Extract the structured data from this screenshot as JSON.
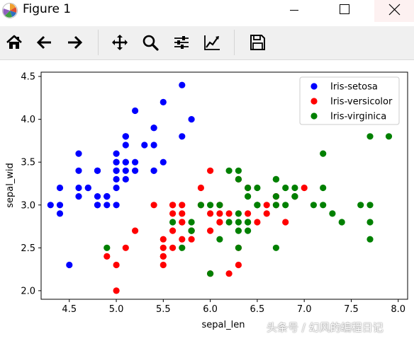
{
  "window": {
    "title": "Figure 1",
    "icon": "matplotlib-logo-icon"
  },
  "toolbar": {
    "buttons": [
      {
        "name": "home",
        "icon": "home-icon"
      },
      {
        "name": "back",
        "icon": "arrow-left-icon"
      },
      {
        "name": "forward",
        "icon": "arrow-right-icon"
      },
      {
        "name": "pan",
        "icon": "move-icon"
      },
      {
        "name": "zoom",
        "icon": "magnifier-icon"
      },
      {
        "name": "subplots",
        "icon": "sliders-icon"
      },
      {
        "name": "customize",
        "icon": "line-chart-icon"
      },
      {
        "name": "save",
        "icon": "floppy-disk-icon"
      }
    ]
  },
  "watermark": "头条号 / 幻风的编程日记",
  "chart_data": {
    "type": "scatter",
    "xlabel": "sepal_len",
    "ylabel": "sepal_wid",
    "xlim": [
      4.2,
      8.1
    ],
    "ylim": [
      1.9,
      4.55
    ],
    "xticks": [
      4.5,
      5.0,
      5.5,
      6.0,
      6.5,
      7.0,
      7.5,
      8.0
    ],
    "xtick_labels": [
      "4.5",
      "5.0",
      "5.5",
      "6.0",
      "6.5",
      "7.0",
      "7.5",
      "8.0"
    ],
    "yticks": [
      2.0,
      2.5,
      3.0,
      3.5,
      4.0,
      4.5
    ],
    "ytick_labels": [
      "2.0",
      "2.5",
      "3.0",
      "3.5",
      "4.0",
      "4.5"
    ],
    "grid": false,
    "legend_position": "top-right",
    "series": [
      {
        "name": "Iris-setosa",
        "color": "#0000ff",
        "points": [
          [
            5.1,
            3.5
          ],
          [
            4.9,
            3.0
          ],
          [
            4.7,
            3.2
          ],
          [
            4.6,
            3.1
          ],
          [
            5.0,
            3.6
          ],
          [
            5.4,
            3.9
          ],
          [
            4.6,
            3.4
          ],
          [
            5.0,
            3.4
          ],
          [
            4.4,
            2.9
          ],
          [
            4.9,
            3.1
          ],
          [
            5.4,
            3.7
          ],
          [
            4.8,
            3.4
          ],
          [
            4.8,
            3.0
          ],
          [
            4.3,
            3.0
          ],
          [
            5.8,
            4.0
          ],
          [
            5.7,
            4.4
          ],
          [
            5.4,
            3.9
          ],
          [
            5.1,
            3.5
          ],
          [
            5.7,
            3.8
          ],
          [
            5.1,
            3.8
          ],
          [
            5.4,
            3.4
          ],
          [
            5.1,
            3.7
          ],
          [
            4.6,
            3.6
          ],
          [
            5.1,
            3.3
          ],
          [
            4.8,
            3.4
          ],
          [
            5.0,
            3.0
          ],
          [
            5.0,
            3.4
          ],
          [
            5.2,
            3.5
          ],
          [
            5.2,
            3.4
          ],
          [
            4.7,
            3.2
          ],
          [
            4.8,
            3.1
          ],
          [
            5.4,
            3.4
          ],
          [
            5.2,
            4.1
          ],
          [
            5.5,
            4.2
          ],
          [
            4.9,
            3.1
          ],
          [
            5.0,
            3.2
          ],
          [
            5.5,
            3.5
          ],
          [
            4.9,
            3.1
          ],
          [
            4.4,
            3.0
          ],
          [
            5.1,
            3.4
          ],
          [
            5.0,
            3.5
          ],
          [
            4.5,
            2.3
          ],
          [
            4.4,
            3.2
          ],
          [
            5.0,
            3.5
          ],
          [
            5.1,
            3.8
          ],
          [
            4.8,
            3.0
          ],
          [
            5.1,
            3.8
          ],
          [
            4.6,
            3.2
          ],
          [
            5.3,
            3.7
          ],
          [
            5.0,
            3.3
          ]
        ]
      },
      {
        "name": "Iris-versicolor",
        "color": "#ff0000",
        "points": [
          [
            7.0,
            3.2
          ],
          [
            6.4,
            3.2
          ],
          [
            6.9,
            3.1
          ],
          [
            5.5,
            2.3
          ],
          [
            6.5,
            2.8
          ],
          [
            5.7,
            2.8
          ],
          [
            6.3,
            3.3
          ],
          [
            4.9,
            2.4
          ],
          [
            6.6,
            2.9
          ],
          [
            5.2,
            2.7
          ],
          [
            5.0,
            2.0
          ],
          [
            5.9,
            3.0
          ],
          [
            6.0,
            2.2
          ],
          [
            6.1,
            2.9
          ],
          [
            5.6,
            2.9
          ],
          [
            6.7,
            3.1
          ],
          [
            5.6,
            3.0
          ],
          [
            5.8,
            2.7
          ],
          [
            6.2,
            2.2
          ],
          [
            5.6,
            2.5
          ],
          [
            5.9,
            3.2
          ],
          [
            6.1,
            2.8
          ],
          [
            6.3,
            2.5
          ],
          [
            6.1,
            2.8
          ],
          [
            6.4,
            2.9
          ],
          [
            6.6,
            3.0
          ],
          [
            6.8,
            2.8
          ],
          [
            6.7,
            3.0
          ],
          [
            6.0,
            2.9
          ],
          [
            5.7,
            2.6
          ],
          [
            5.5,
            2.4
          ],
          [
            5.5,
            2.4
          ],
          [
            5.8,
            2.7
          ],
          [
            6.0,
            2.7
          ],
          [
            5.4,
            3.0
          ],
          [
            6.0,
            3.4
          ],
          [
            6.7,
            3.1
          ],
          [
            6.3,
            2.3
          ],
          [
            5.6,
            3.0
          ],
          [
            5.5,
            2.5
          ],
          [
            5.5,
            2.6
          ],
          [
            6.1,
            3.0
          ],
          [
            5.8,
            2.6
          ],
          [
            5.0,
            2.3
          ],
          [
            5.6,
            2.7
          ],
          [
            5.7,
            3.0
          ],
          [
            5.7,
            2.9
          ],
          [
            6.2,
            2.9
          ],
          [
            5.1,
            2.5
          ],
          [
            5.7,
            2.8
          ]
        ]
      },
      {
        "name": "Iris-virginica",
        "color": "#008000",
        "points": [
          [
            6.3,
            3.3
          ],
          [
            5.8,
            2.7
          ],
          [
            7.1,
            3.0
          ],
          [
            6.3,
            2.9
          ],
          [
            6.5,
            3.0
          ],
          [
            7.6,
            3.0
          ],
          [
            4.9,
            2.5
          ],
          [
            7.3,
            2.9
          ],
          [
            6.7,
            2.5
          ],
          [
            7.2,
            3.6
          ],
          [
            6.5,
            3.2
          ],
          [
            6.4,
            2.7
          ],
          [
            6.8,
            3.0
          ],
          [
            5.7,
            2.5
          ],
          [
            5.8,
            2.8
          ],
          [
            6.4,
            3.2
          ],
          [
            6.5,
            3.0
          ],
          [
            7.7,
            3.8
          ],
          [
            7.7,
            2.6
          ],
          [
            6.0,
            2.2
          ],
          [
            6.9,
            3.2
          ],
          [
            5.6,
            2.8
          ],
          [
            7.7,
            2.8
          ],
          [
            6.3,
            2.7
          ],
          [
            6.7,
            3.3
          ],
          [
            7.2,
            3.2
          ],
          [
            6.2,
            2.8
          ],
          [
            6.1,
            3.0
          ],
          [
            6.4,
            2.8
          ],
          [
            7.2,
            3.0
          ],
          [
            7.4,
            2.8
          ],
          [
            7.9,
            3.8
          ],
          [
            6.4,
            2.8
          ],
          [
            6.3,
            2.8
          ],
          [
            6.1,
            2.6
          ],
          [
            7.7,
            3.0
          ],
          [
            6.3,
            3.4
          ],
          [
            6.4,
            3.1
          ],
          [
            6.0,
            3.0
          ],
          [
            6.9,
            3.1
          ],
          [
            6.7,
            3.1
          ],
          [
            6.9,
            3.1
          ],
          [
            5.8,
            2.7
          ],
          [
            6.8,
            3.2
          ],
          [
            6.7,
            3.3
          ],
          [
            6.7,
            3.0
          ],
          [
            6.3,
            2.5
          ],
          [
            6.5,
            3.0
          ],
          [
            6.2,
            3.4
          ],
          [
            5.9,
            3.0
          ]
        ]
      }
    ]
  }
}
